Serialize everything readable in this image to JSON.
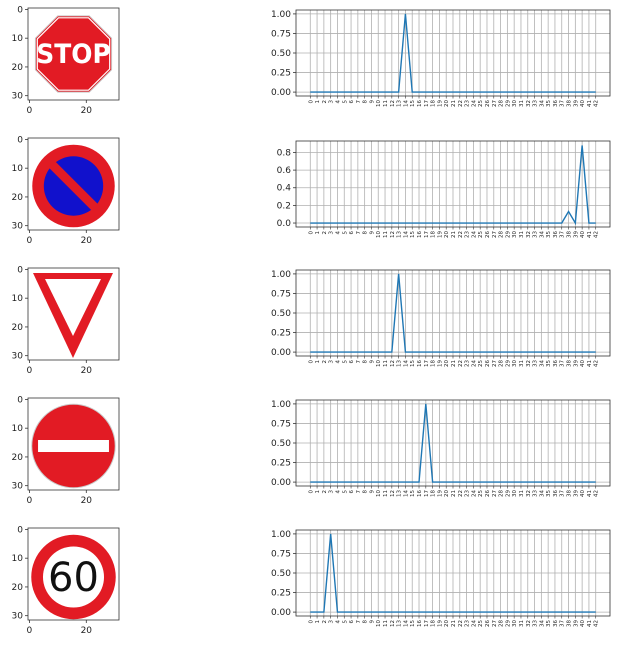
{
  "chart_data": [
    {
      "type": "image",
      "sign": "stop-sign",
      "xticks": [
        "0",
        "20"
      ],
      "yticks": [
        "0",
        "10",
        "20",
        "30"
      ],
      "colors": {
        "primary": "#e21b24",
        "secondary": "#ffffff"
      }
    },
    {
      "type": "line",
      "ylim": [
        -0.05,
        1.05
      ],
      "yticks": [
        "0.00",
        "0.25",
        "0.50",
        "0.75",
        "1.00"
      ],
      "ytick_values": [
        0,
        0.25,
        0.5,
        0.75,
        1.0
      ],
      "x": [
        0,
        1,
        2,
        3,
        4,
        5,
        6,
        7,
        8,
        9,
        10,
        11,
        12,
        13,
        14,
        15,
        16,
        17,
        18,
        19,
        20,
        21,
        22,
        23,
        24,
        25,
        26,
        27,
        28,
        29,
        30,
        31,
        32,
        33,
        34,
        35,
        36,
        37,
        38,
        39,
        40,
        41,
        42
      ],
      "values": [
        0,
        0,
        0,
        0,
        0,
        0,
        0,
        0,
        0,
        0,
        0,
        0,
        0,
        0,
        1.0,
        0,
        0,
        0,
        0,
        0,
        0,
        0,
        0,
        0,
        0,
        0,
        0,
        0,
        0,
        0,
        0,
        0,
        0,
        0,
        0,
        0,
        0,
        0,
        0,
        0,
        0,
        0,
        0
      ],
      "grid": true,
      "color": "#1f77b4"
    },
    {
      "type": "image",
      "sign": "no-parking-sign",
      "xticks": [
        "0",
        "20"
      ],
      "yticks": [
        "0",
        "10",
        "20",
        "30"
      ],
      "colors": {
        "primary": "#e21b24",
        "secondary": "#1111cc"
      }
    },
    {
      "type": "line",
      "ylim": [
        -0.045,
        0.93
      ],
      "yticks": [
        "0.0",
        "0.2",
        "0.4",
        "0.6",
        "0.8"
      ],
      "ytick_values": [
        0,
        0.2,
        0.4,
        0.6,
        0.8
      ],
      "x": [
        0,
        1,
        2,
        3,
        4,
        5,
        6,
        7,
        8,
        9,
        10,
        11,
        12,
        13,
        14,
        15,
        16,
        17,
        18,
        19,
        20,
        21,
        22,
        23,
        24,
        25,
        26,
        27,
        28,
        29,
        30,
        31,
        32,
        33,
        34,
        35,
        36,
        37,
        38,
        39,
        40,
        41,
        42
      ],
      "values": [
        0,
        0,
        0,
        0,
        0,
        0,
        0,
        0,
        0,
        0,
        0,
        0,
        0,
        0,
        0,
        0,
        0,
        0,
        0,
        0,
        0,
        0,
        0,
        0,
        0,
        0,
        0,
        0,
        0,
        0,
        0,
        0,
        0,
        0,
        0,
        0,
        0,
        0,
        0.13,
        0,
        0.88,
        0,
        0
      ],
      "grid": true,
      "color": "#1f77b4"
    },
    {
      "type": "image",
      "sign": "yield-sign",
      "xticks": [
        "0",
        "20"
      ],
      "yticks": [
        "0",
        "10",
        "20",
        "30"
      ],
      "colors": {
        "primary": "#e21b24",
        "secondary": "#ffffff"
      }
    },
    {
      "type": "line",
      "ylim": [
        -0.05,
        1.05
      ],
      "yticks": [
        "0.00",
        "0.25",
        "0.50",
        "0.75",
        "1.00"
      ],
      "ytick_values": [
        0,
        0.25,
        0.5,
        0.75,
        1.0
      ],
      "x": [
        0,
        1,
        2,
        3,
        4,
        5,
        6,
        7,
        8,
        9,
        10,
        11,
        12,
        13,
        14,
        15,
        16,
        17,
        18,
        19,
        20,
        21,
        22,
        23,
        24,
        25,
        26,
        27,
        28,
        29,
        30,
        31,
        32,
        33,
        34,
        35,
        36,
        37,
        38,
        39,
        40,
        41,
        42
      ],
      "values": [
        0,
        0,
        0,
        0,
        0,
        0,
        0,
        0,
        0,
        0,
        0,
        0,
        0,
        1.0,
        0,
        0,
        0,
        0,
        0,
        0,
        0,
        0,
        0,
        0,
        0,
        0,
        0,
        0,
        0,
        0,
        0,
        0,
        0,
        0,
        0,
        0,
        0,
        0,
        0,
        0,
        0,
        0,
        0
      ],
      "grid": true,
      "color": "#1f77b4"
    },
    {
      "type": "image",
      "sign": "no-entry-sign",
      "xticks": [
        "0",
        "20"
      ],
      "yticks": [
        "0",
        "10",
        "20",
        "30"
      ],
      "colors": {
        "primary": "#e21b24",
        "secondary": "#ffffff"
      }
    },
    {
      "type": "line",
      "ylim": [
        -0.05,
        1.05
      ],
      "yticks": [
        "0.00",
        "0.25",
        "0.50",
        "0.75",
        "1.00"
      ],
      "ytick_values": [
        0,
        0.25,
        0.5,
        0.75,
        1.0
      ],
      "x": [
        0,
        1,
        2,
        3,
        4,
        5,
        6,
        7,
        8,
        9,
        10,
        11,
        12,
        13,
        14,
        15,
        16,
        17,
        18,
        19,
        20,
        21,
        22,
        23,
        24,
        25,
        26,
        27,
        28,
        29,
        30,
        31,
        32,
        33,
        34,
        35,
        36,
        37,
        38,
        39,
        40,
        41,
        42
      ],
      "values": [
        0,
        0,
        0,
        0,
        0,
        0,
        0,
        0,
        0,
        0,
        0,
        0,
        0,
        0,
        0,
        0,
        0,
        1.0,
        0,
        0,
        0,
        0,
        0,
        0,
        0,
        0,
        0,
        0,
        0,
        0,
        0,
        0,
        0,
        0,
        0,
        0,
        0,
        0,
        0,
        0,
        0,
        0,
        0
      ],
      "grid": true,
      "color": "#1f77b4"
    },
    {
      "type": "image",
      "sign": "speed-limit-60-sign",
      "sign_text": "60",
      "xticks": [
        "0",
        "20"
      ],
      "yticks": [
        "0",
        "10",
        "20",
        "30"
      ],
      "colors": {
        "primary": "#e21b24",
        "secondary": "#ffffff"
      }
    },
    {
      "type": "line",
      "ylim": [
        -0.05,
        1.05
      ],
      "yticks": [
        "0.00",
        "0.25",
        "0.50",
        "0.75",
        "1.00"
      ],
      "ytick_values": [
        0,
        0.25,
        0.5,
        0.75,
        1.0
      ],
      "x": [
        0,
        1,
        2,
        3,
        4,
        5,
        6,
        7,
        8,
        9,
        10,
        11,
        12,
        13,
        14,
        15,
        16,
        17,
        18,
        19,
        20,
        21,
        22,
        23,
        24,
        25,
        26,
        27,
        28,
        29,
        30,
        31,
        32,
        33,
        34,
        35,
        36,
        37,
        38,
        39,
        40,
        41,
        42
      ],
      "values": [
        0,
        0,
        0,
        1.0,
        0,
        0,
        0,
        0,
        0,
        0,
        0,
        0,
        0,
        0,
        0,
        0,
        0,
        0,
        0,
        0,
        0,
        0,
        0,
        0,
        0,
        0,
        0,
        0,
        0,
        0,
        0,
        0,
        0,
        0,
        0,
        0,
        0,
        0,
        0,
        0,
        0,
        0,
        0
      ],
      "grid": true,
      "color": "#1f77b4"
    }
  ]
}
